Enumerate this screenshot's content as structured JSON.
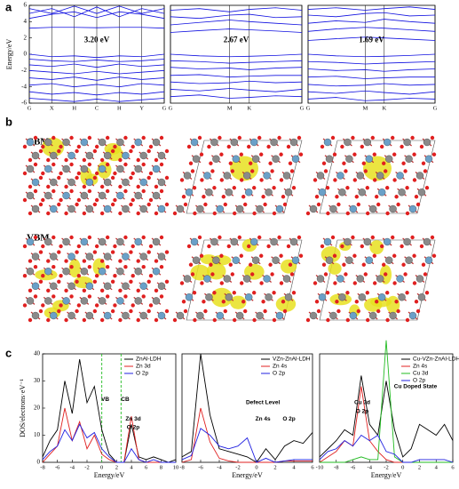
{
  "panel_labels": [
    "a",
    "b",
    "c"
  ],
  "structure_labels": [
    "CBM",
    "VBM"
  ],
  "chart_data": [
    {
      "type": "line",
      "ylabel": "Energy/eV",
      "gap_label": "3.20 eV",
      "color": "#1010e0",
      "x": [
        0,
        1,
        2,
        3,
        4,
        5,
        6
      ],
      "xlim": [
        0,
        6
      ],
      "xticks": [
        {
          "value": 0,
          "label": "G"
        },
        {
          "value": 1,
          "label": "X"
        },
        {
          "value": 2,
          "label": "H"
        },
        {
          "value": 3,
          "label": "C"
        },
        {
          "value": 4,
          "label": "H"
        },
        {
          "value": 5,
          "label": "Y"
        },
        {
          "value": 6,
          "label": "G"
        }
      ],
      "ylim": [
        -6,
        6
      ],
      "yticks": [
        -6,
        -4,
        -2,
        0,
        2,
        4,
        6
      ],
      "series": [
        {
          "values": [
            3.2,
            3.3,
            3.3,
            3.25,
            3.3,
            3.3,
            3.2
          ]
        },
        {
          "values": [
            4.4,
            4.9,
            5.2,
            4.5,
            5.2,
            4.9,
            4.4
          ]
        },
        {
          "values": [
            5.0,
            5.6,
            4.6,
            5.8,
            4.6,
            5.6,
            5.0
          ]
        },
        {
          "values": [
            5.6,
            5.0,
            5.9,
            5.0,
            5.9,
            5.0,
            5.6
          ]
        },
        {
          "values": [
            0,
            -0.3,
            -0.2,
            -0.4,
            -0.2,
            -0.3,
            0
          ]
        },
        {
          "values": [
            -0.6,
            -0.8,
            -0.9,
            -0.7,
            -0.9,
            -0.8,
            -0.6
          ]
        },
        {
          "values": [
            -1.3,
            -1.5,
            -1.2,
            -1.6,
            -1.2,
            -1.5,
            -1.3
          ]
        },
        {
          "values": [
            -2.0,
            -2.2,
            -2.4,
            -2.1,
            -2.4,
            -2.2,
            -2.0
          ]
        },
        {
          "values": [
            -2.9,
            -3.1,
            -2.8,
            -3.2,
            -2.8,
            -3.1,
            -2.9
          ]
        },
        {
          "values": [
            -3.8,
            -3.6,
            -4.0,
            -3.7,
            -4.0,
            -3.6,
            -3.8
          ]
        },
        {
          "values": [
            -4.6,
            -4.9,
            -4.7,
            -5.0,
            -4.7,
            -4.9,
            -4.6
          ]
        },
        {
          "values": [
            -5.4,
            -5.6,
            -5.8,
            -5.5,
            -5.8,
            -5.6,
            -5.4
          ]
        }
      ]
    },
    {
      "type": "line",
      "gap_label": "2.67 eV",
      "color": "#1010e0",
      "x": [
        0,
        0.22,
        0.45,
        0.6,
        0.8,
        1
      ],
      "xlim": [
        0,
        1
      ],
      "xticks": [
        {
          "value": 0,
          "label": "G"
        },
        {
          "value": 0.45,
          "label": "M"
        },
        {
          "value": 0.6,
          "label": "K"
        },
        {
          "value": 1,
          "label": "G"
        }
      ],
      "ylim": [
        -6,
        6
      ],
      "series": [
        {
          "values": [
            2.67,
            2.9,
            3.1,
            3.0,
            2.85,
            2.67
          ]
        },
        {
          "values": [
            3.6,
            3.9,
            4.2,
            4.0,
            3.8,
            3.6
          ]
        },
        {
          "values": [
            4.6,
            4.4,
            4.8,
            4.9,
            4.5,
            4.6
          ]
        },
        {
          "values": [
            5.4,
            5.6,
            5.2,
            5.5,
            5.7,
            5.4
          ]
        },
        {
          "values": [
            0,
            -0.2,
            -0.3,
            -0.25,
            -0.15,
            0
          ]
        },
        {
          "values": [
            -0.8,
            -0.9,
            -1.1,
            -1.0,
            -0.9,
            -0.8
          ]
        },
        {
          "values": [
            -1.6,
            -1.8,
            -1.7,
            -1.9,
            -1.7,
            -1.6
          ]
        },
        {
          "values": [
            -2.6,
            -2.5,
            -2.8,
            -2.7,
            -2.6,
            -2.6
          ]
        },
        {
          "values": [
            -3.4,
            -3.6,
            -3.5,
            -3.3,
            -3.5,
            -3.4
          ]
        },
        {
          "values": [
            -4.3,
            -4.5,
            -4.2,
            -4.4,
            -4.6,
            -4.3
          ]
        },
        {
          "values": [
            -5.2,
            -5.0,
            -5.4,
            -5.3,
            -5.1,
            -5.2
          ]
        }
      ]
    },
    {
      "type": "line",
      "gap_label": "1.69 eV",
      "color": "#1010e0",
      "x": [
        0,
        0.22,
        0.45,
        0.6,
        0.8,
        1
      ],
      "xlim": [
        0,
        1
      ],
      "xticks": [
        {
          "value": 0,
          "label": "G"
        },
        {
          "value": 0.45,
          "label": "M"
        },
        {
          "value": 0.6,
          "label": "K"
        },
        {
          "value": 1,
          "label": "G"
        }
      ],
      "ylim": [
        -6,
        6
      ],
      "series": [
        {
          "values": [
            1.69,
            1.9,
            2.1,
            2.0,
            1.85,
            1.69
          ]
        },
        {
          "values": [
            2.8,
            3.1,
            3.3,
            3.2,
            3.0,
            2.8
          ]
        },
        {
          "values": [
            3.8,
            4.1,
            3.9,
            4.3,
            4.0,
            3.8
          ]
        },
        {
          "values": [
            4.8,
            4.6,
            5.0,
            5.1,
            4.7,
            4.8
          ]
        },
        {
          "values": [
            5.5,
            5.7,
            5.4,
            5.6,
            5.8,
            5.5
          ]
        },
        {
          "values": [
            0,
            -0.2,
            -0.3,
            -0.25,
            -0.15,
            0
          ]
        },
        {
          "values": [
            -0.9,
            -1.0,
            -1.2,
            -1.1,
            -1.0,
            -0.9
          ]
        },
        {
          "values": [
            -1.8,
            -2.0,
            -1.9,
            -2.1,
            -1.9,
            -1.8
          ]
        },
        {
          "values": [
            -2.8,
            -2.7,
            -3.0,
            -2.9,
            -2.8,
            -2.8
          ]
        },
        {
          "values": [
            -3.7,
            -3.9,
            -3.8,
            -3.6,
            -3.8,
            -3.7
          ]
        },
        {
          "values": [
            -4.6,
            -4.8,
            -4.5,
            -4.7,
            -4.9,
            -4.6
          ]
        },
        {
          "values": [
            -5.5,
            -5.3,
            -5.7,
            -5.6,
            -5.4,
            -5.5
          ]
        }
      ]
    },
    {
      "type": "line",
      "ylabel": "DOS/electrons·eV⁻¹",
      "xlabel": "Energy/eV",
      "x": [
        -8,
        -7,
        -6,
        -5,
        -4,
        -3,
        -2,
        -1,
        0,
        1,
        2,
        3,
        4,
        5,
        6,
        7,
        8,
        9,
        10
      ],
      "xlim": [
        -8,
        10
      ],
      "xticks": [
        -8,
        -6,
        -4,
        -2,
        0,
        2,
        4,
        6,
        8,
        10
      ],
      "ylim": [
        0,
        40
      ],
      "yticks": [
        0,
        10,
        20,
        30,
        40
      ],
      "vlines": [
        0,
        2.6
      ],
      "vline_color": "#22bb22",
      "annotations": [
        {
          "text": "VB",
          "color": "#000000"
        },
        {
          "text": "CB",
          "color": "#000000"
        },
        {
          "text": "Zn 3d",
          "color": "#000000"
        },
        {
          "text": "O 2p",
          "color": "#000000"
        }
      ],
      "series": [
        {
          "name": "ZnAl-LDH",
          "color": "#000000",
          "values": [
            2,
            8,
            12,
            30,
            18,
            38,
            22,
            28,
            12,
            3,
            0,
            0,
            14,
            2,
            1,
            2,
            1,
            0,
            1
          ]
        },
        {
          "name": "Zn 3d",
          "color": "#e02020",
          "values": [
            0,
            3,
            6,
            20,
            8,
            15,
            5,
            10,
            3,
            1,
            0,
            0,
            17,
            1,
            0,
            0,
            0,
            0,
            0
          ]
        },
        {
          "name": "O 2p",
          "color": "#2020e0",
          "values": [
            1,
            4,
            6,
            12,
            8,
            14,
            9,
            11,
            5,
            2,
            0,
            0,
            5,
            1,
            0,
            1,
            0,
            0,
            0
          ]
        }
      ]
    },
    {
      "type": "line",
      "xlabel": "Energy/eV",
      "x": [
        -8,
        -7,
        -6,
        -5,
        -4,
        -3,
        -2,
        -1,
        0,
        1,
        2,
        3,
        4,
        5,
        6
      ],
      "xlim": [
        -8,
        6
      ],
      "xticks": [
        -8,
        -6,
        -4,
        -2,
        0,
        2,
        4,
        6
      ],
      "ylim": [
        0,
        80
      ],
      "annotations": [
        {
          "text": "Defect Level",
          "color": "#2020e0"
        },
        {
          "text": "Zn 4s",
          "color": "#e02020"
        },
        {
          "text": "O  2p",
          "color": "#2020e0"
        }
      ],
      "series": [
        {
          "name": "VZn-ZnAl-LDH",
          "color": "#000000",
          "values": [
            4,
            8,
            80,
            35,
            10,
            8,
            6,
            4,
            0,
            10,
            2,
            12,
            16,
            14,
            22
          ]
        },
        {
          "name": "Zn 4s",
          "color": "#e02020",
          "values": [
            0,
            2,
            40,
            15,
            3,
            1,
            0,
            0,
            0,
            0,
            0,
            1,
            1,
            1,
            1
          ]
        },
        {
          "name": "O  2p",
          "color": "#2020e0",
          "values": [
            2,
            5,
            25,
            20,
            12,
            10,
            12,
            18,
            0,
            3,
            0,
            1,
            2,
            2,
            2
          ]
        }
      ]
    },
    {
      "type": "line",
      "xlabel": "Energy/eV",
      "x": [
        -10,
        -9,
        -8,
        -7,
        -6,
        -5,
        -4,
        -3,
        -2,
        -1,
        0,
        1,
        2,
        3,
        4,
        5,
        6
      ],
      "xlim": [
        -10,
        6
      ],
      "xticks": [
        -10,
        -8,
        -6,
        -4,
        -2,
        0,
        2,
        4,
        6
      ],
      "ylim": [
        0,
        40
      ],
      "annotations": [
        {
          "text": "Cu 3d",
          "color": "#22bb22"
        },
        {
          "text": "O 2p",
          "color": "#2020e0"
        },
        {
          "text": "Cu Doped State",
          "color": "#2020e0"
        }
      ],
      "series": [
        {
          "name": "Cu-VZn-ZnAl-LDH",
          "color": "#000000",
          "values": [
            2,
            5,
            8,
            12,
            10,
            32,
            14,
            10,
            30,
            12,
            2,
            5,
            14,
            12,
            10,
            14,
            8
          ]
        },
        {
          "name": "Zn 4s",
          "color": "#e02020",
          "values": [
            0,
            2,
            4,
            8,
            6,
            28,
            8,
            4,
            1,
            0,
            0,
            0,
            0,
            0,
            0,
            0,
            0
          ]
        },
        {
          "name": "Cu 3d",
          "color": "#22bb22",
          "values": [
            0,
            0,
            0,
            0,
            1,
            2,
            1,
            1,
            45,
            2,
            0,
            0,
            0,
            0,
            0,
            0,
            0
          ]
        },
        {
          "name": "O  2p",
          "color": "#2020e0",
          "values": [
            1,
            4,
            5,
            8,
            6,
            10,
            8,
            10,
            4,
            3,
            0,
            0,
            1,
            1,
            1,
            1,
            0
          ]
        }
      ]
    }
  ]
}
